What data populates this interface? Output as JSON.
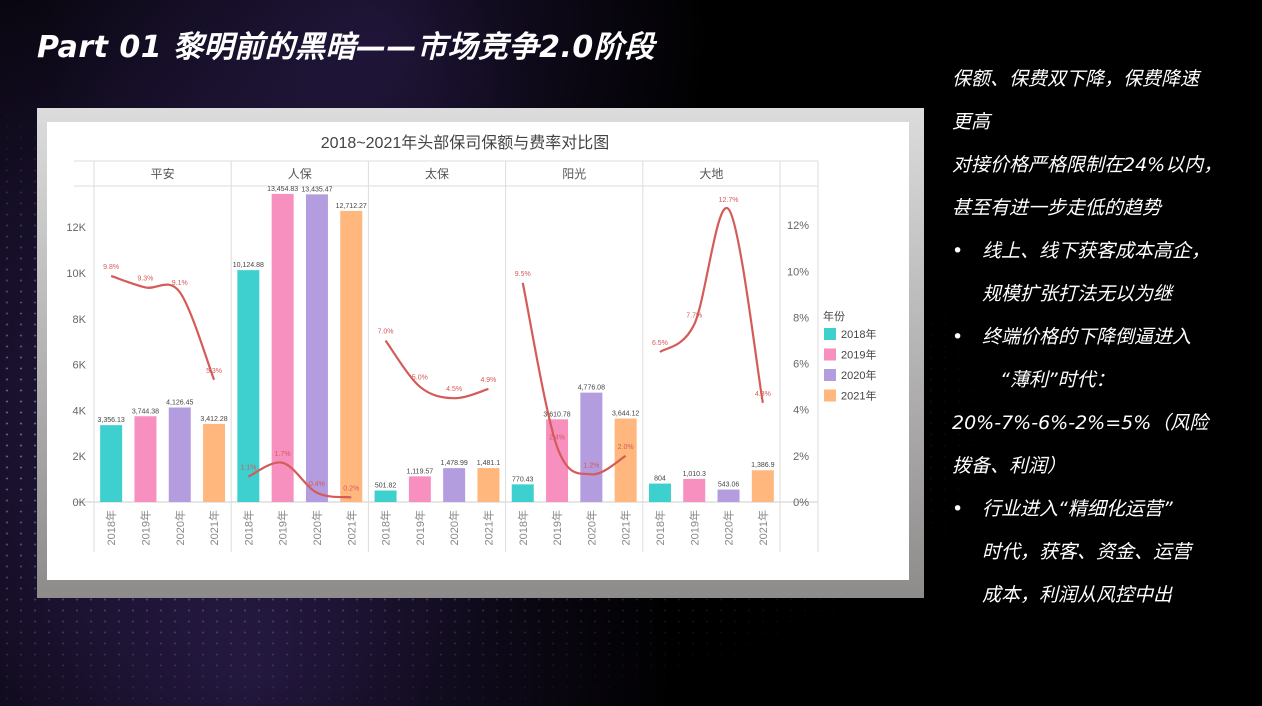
{
  "slide": {
    "title": "Part 01 黎明前的黑暗——市场竞争2.0阶段"
  },
  "right_text": {
    "p1_line1": "保额、保费双下降，保费降速",
    "p1_line2": "更高",
    "p2_line1": "对接价格严格限制在24%以内，",
    "p2_line2": "甚至有进一步走低的趋势",
    "bullet_char": "•",
    "b1_line1": "线上、线下获客成本高企，",
    "b1_line2": "规模扩张打法无以为继",
    "b2_line1": "终端价格的下降倒逼进入",
    "b2_line2": "“薄利”时代：",
    "calc_line1": "20%-7%-6%-2%=5%（风险",
    "calc_line2": "拨备、利润）",
    "b3_line1": "行业进入“精细化运营”",
    "b3_line2": "时代，获客、资金、运营",
    "b3_line3": "成本，利润从风控中出"
  },
  "chart_data": {
    "type": "bar",
    "title": "2018~2021年头部保司保额与费率对比图",
    "groups": [
      "平安",
      "人保",
      "太保",
      "阳光",
      "大地"
    ],
    "categories": [
      "2018年",
      "2019年",
      "2020年",
      "2021年"
    ],
    "colors": [
      "#3ecfcf",
      "#f78fbf",
      "#b39ddf",
      "#ffb77e"
    ],
    "line_color": "#d45b57",
    "bar_values": [
      [
        3356.13,
        3744.38,
        4126.45,
        3412.28
      ],
      [
        10124.88,
        13454.83,
        13435.47,
        12712.27
      ],
      [
        501.82,
        1119.57,
        1478.99,
        1481.1
      ],
      [
        770.43,
        3610.78,
        4776.08,
        3644.12
      ],
      [
        804,
        1010.3,
        543.06,
        1386.9
      ]
    ],
    "bar_labels": [
      [
        "3,356.13",
        "3,744.38",
        "4,126.45",
        "3,412.28"
      ],
      [
        "10,124.88",
        "13,454.83",
        "13,435.47",
        "12,712.27"
      ],
      [
        "501.82",
        "1,119.57",
        "1,478.99",
        "1,481.1"
      ],
      [
        "770.43",
        "3,610.78",
        "4,776.08",
        "3,644.12"
      ],
      [
        "804",
        "1,010.3",
        "543.06",
        "1,386.9"
      ]
    ],
    "rate_values": [
      [
        9.8,
        9.3,
        9.1,
        5.3
      ],
      [
        1.1,
        1.7,
        0.4,
        0.2
      ],
      [
        7.0,
        5.0,
        4.5,
        4.9
      ],
      [
        9.5,
        2.4,
        1.2,
        2.0
      ],
      [
        6.5,
        7.7,
        12.7,
        4.3
      ]
    ],
    "rate_labels": [
      [
        "9.8%",
        "9.3%",
        "9.1%",
        "5.3%"
      ],
      [
        "1.1%",
        "1.7%",
        "0.4%",
        "0.2%"
      ],
      [
        "7.0%",
        "5.0%",
        "4.5%",
        "4.9%"
      ],
      [
        "9.5%",
        "2.4%",
        "1.2%",
        "2.0%"
      ],
      [
        "6.5%",
        "7.7%",
        "12.7%",
        "4.3%"
      ]
    ],
    "y_left_ticks": [
      "0K",
      "2K",
      "4K",
      "6K",
      "8K",
      "10K",
      "12K"
    ],
    "y_left_tick_values": [
      0,
      2000,
      4000,
      6000,
      8000,
      10000,
      12000
    ],
    "ylim_left": [
      0,
      13800
    ],
    "y_right_ticks": [
      "0%",
      "2%",
      "4%",
      "6%",
      "8%",
      "10%",
      "12%"
    ],
    "y_right_tick_values": [
      0,
      2,
      4,
      6,
      8,
      10,
      12
    ],
    "ylim_right": [
      0,
      13.7
    ],
    "legend_title": "年份",
    "legend_position": "right"
  }
}
